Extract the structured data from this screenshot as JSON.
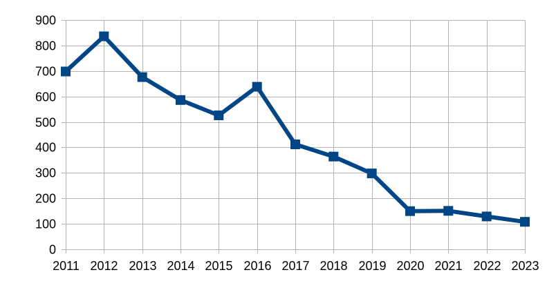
{
  "chart_data": {
    "type": "line",
    "title": "",
    "xlabel": "",
    "ylabel": "",
    "categories": [
      "2011",
      "2012",
      "2013",
      "2014",
      "2015",
      "2016",
      "2017",
      "2018",
      "2019",
      "2020",
      "2021",
      "2022",
      "2023"
    ],
    "series": [
      {
        "color": "#004586",
        "marker": "square",
        "values": [
          698,
          836,
          676,
          586,
          526,
          638,
          412,
          364,
          298,
          150,
          151,
          129,
          108
        ]
      }
    ],
    "ylim": [
      0,
      900
    ],
    "yticks": [
      0,
      100,
      200,
      300,
      400,
      500,
      600,
      700,
      800,
      900
    ],
    "grid": true,
    "legend": "none"
  },
  "colors": {
    "line": "#004586",
    "grid": "#b3b3b3",
    "axis": "#b3b3b3",
    "text": "#000000"
  }
}
